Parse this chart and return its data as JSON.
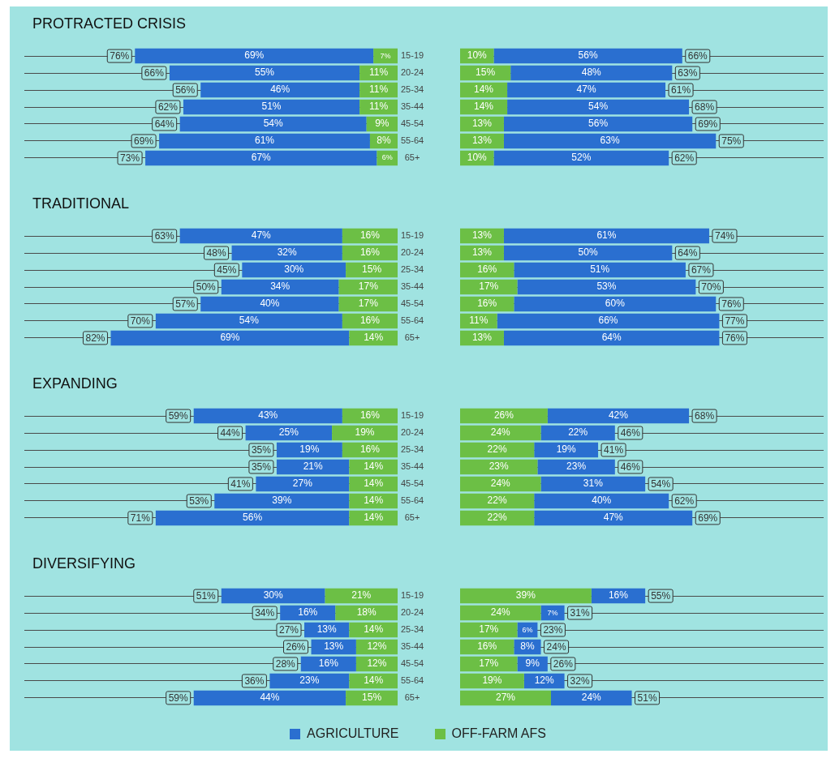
{
  "chart_data": [
    {
      "type": "bar",
      "orientation": "horizontal",
      "stacked": true,
      "title": "PROTRACTED CRISIS",
      "categories": [
        "15-19",
        "20-24",
        "25-34",
        "35-44",
        "45-54",
        "55-64",
        "65+"
      ],
      "xlim": [
        108,
        0
      ],
      "grid": "y",
      "series": [
        {
          "color": "#6cbf45",
          "values": [
            7,
            11,
            11,
            11,
            9,
            8,
            6
          ],
          "value_labels": [
            "7%",
            "11%",
            "11%",
            "11%",
            "9%",
            "8%",
            "6%"
          ]
        },
        {
          "color": "#2a6fd0",
          "values": [
            69,
            55,
            46,
            51,
            54,
            61,
            67
          ],
          "value_labels": [
            "69%",
            "55%",
            "46%",
            "51%",
            "54%",
            "61%",
            "67%"
          ]
        }
      ],
      "totals": [
        "76%",
        "66%",
        "56%",
        "62%",
        "64%",
        "69%",
        "73%"
      ]
    },
    {
      "type": "bar",
      "orientation": "horizontal",
      "stacked": true,
      "xlim": [
        0,
        108
      ],
      "grid": "y",
      "series": [
        {
          "color": "#6cbf45",
          "values": [
            10,
            15,
            14,
            14,
            13,
            13,
            10
          ],
          "value_labels": [
            "10%",
            "15%",
            "14%",
            "14%",
            "13%",
            "13%",
            "10%"
          ]
        },
        {
          "color": "#2a6fd0",
          "values": [
            56,
            48,
            47,
            54,
            56,
            63,
            52
          ],
          "value_labels": [
            "56%",
            "48%",
            "47%",
            "54%",
            "56%",
            "63%",
            "52%"
          ]
        }
      ],
      "totals": [
        "66%",
        "63%",
        "61%",
        "68%",
        "69%",
        "75%",
        "62%"
      ]
    },
    {
      "type": "bar",
      "orientation": "horizontal",
      "stacked": true,
      "title": "TRADITIONAL",
      "categories": [
        "15-19",
        "20-24",
        "25-34",
        "35-44",
        "45-54",
        "55-64",
        "65+"
      ],
      "xlim": [
        108,
        0
      ],
      "grid": "y",
      "series": [
        {
          "color": "#6cbf45",
          "values": [
            16,
            16,
            15,
            17,
            17,
            16,
            14
          ],
          "value_labels": [
            "16%",
            "16%",
            "15%",
            "17%",
            "17%",
            "16%",
            "14%"
          ]
        },
        {
          "color": "#2a6fd0",
          "values": [
            47,
            32,
            30,
            34,
            40,
            54,
            69
          ],
          "value_labels": [
            "47%",
            "32%",
            "30%",
            "34%",
            "40%",
            "54%",
            "69%"
          ]
        }
      ],
      "totals": [
        "63%",
        "48%",
        "45%",
        "50%",
        "57%",
        "70%",
        "82%"
      ]
    },
    {
      "type": "bar",
      "orientation": "horizontal",
      "stacked": true,
      "xlim": [
        0,
        108
      ],
      "grid": "y",
      "series": [
        {
          "color": "#6cbf45",
          "values": [
            13,
            13,
            16,
            17,
            16,
            11,
            13
          ],
          "value_labels": [
            "13%",
            "13%",
            "16%",
            "17%",
            "16%",
            "11%",
            "13%"
          ]
        },
        {
          "color": "#2a6fd0",
          "values": [
            61,
            50,
            51,
            53,
            60,
            66,
            64
          ],
          "value_labels": [
            "61%",
            "50%",
            "51%",
            "53%",
            "60%",
            "66%",
            "64%"
          ]
        }
      ],
      "totals": [
        "74%",
        "64%",
        "67%",
        "70%",
        "76%",
        "77%",
        "76%"
      ]
    },
    {
      "type": "bar",
      "orientation": "horizontal",
      "stacked": true,
      "title": "EXPANDING",
      "categories": [
        "15-19",
        "20-24",
        "25-34",
        "35-44",
        "45-54",
        "55-64",
        "65+"
      ],
      "xlim": [
        108,
        0
      ],
      "grid": "y",
      "series": [
        {
          "color": "#6cbf45",
          "values": [
            16,
            19,
            16,
            14,
            14,
            14,
            14
          ],
          "value_labels": [
            "16%",
            "19%",
            "16%",
            "14%",
            "14%",
            "14%",
            "14%"
          ]
        },
        {
          "color": "#2a6fd0",
          "values": [
            43,
            25,
            19,
            21,
            27,
            39,
            56
          ],
          "value_labels": [
            "43%",
            "25%",
            "19%",
            "21%",
            "27%",
            "39%",
            "56%"
          ]
        }
      ],
      "totals": [
        "59%",
        "44%",
        "35%",
        "35%",
        "41%",
        "53%",
        "71%"
      ]
    },
    {
      "type": "bar",
      "orientation": "horizontal",
      "stacked": true,
      "xlim": [
        0,
        108
      ],
      "grid": "y",
      "series": [
        {
          "color": "#6cbf45",
          "values": [
            26,
            24,
            22,
            23,
            24,
            22,
            22
          ],
          "value_labels": [
            "26%",
            "24%",
            "22%",
            "23%",
            "24%",
            "22%",
            "22%"
          ]
        },
        {
          "color": "#2a6fd0",
          "values": [
            42,
            22,
            19,
            23,
            31,
            40,
            47
          ],
          "value_labels": [
            "42%",
            "22%",
            "19%",
            "23%",
            "31%",
            "40%",
            "47%"
          ]
        }
      ],
      "totals": [
        "68%",
        "46%",
        "41%",
        "46%",
        "54%",
        "62%",
        "69%"
      ]
    },
    {
      "type": "bar",
      "orientation": "horizontal",
      "stacked": true,
      "title": "DIVERSIFYING",
      "categories": [
        "15-19",
        "20-24",
        "25-34",
        "35-44",
        "45-54",
        "55-64",
        "65+"
      ],
      "xlim": [
        108,
        0
      ],
      "grid": "y",
      "series": [
        {
          "color": "#6cbf45",
          "values": [
            21,
            18,
            14,
            12,
            12,
            14,
            15
          ],
          "value_labels": [
            "21%",
            "18%",
            "14%",
            "12%",
            "12%",
            "14%",
            "15%"
          ]
        },
        {
          "color": "#2a6fd0",
          "values": [
            30,
            16,
            13,
            13,
            16,
            23,
            44
          ],
          "value_labels": [
            "30%",
            "16%",
            "13%",
            "13%",
            "16%",
            "23%",
            "44%"
          ]
        }
      ],
      "totals": [
        "51%",
        "34%",
        "27%",
        "26%",
        "28%",
        "36%",
        "59%"
      ]
    },
    {
      "type": "bar",
      "orientation": "horizontal",
      "stacked": true,
      "xlim": [
        0,
        108
      ],
      "grid": "y",
      "legend": "bottom",
      "series": [
        {
          "name": "OFF-FARM AFS",
          "color": "#6cbf45",
          "values": [
            39,
            24,
            17,
            16,
            17,
            19,
            27
          ],
          "value_labels": [
            "39%",
            "24%",
            "17%",
            "16%",
            "17%",
            "19%",
            "27%"
          ]
        },
        {
          "name": "AGRICULTURE",
          "color": "#2a6fd0",
          "values": [
            16,
            7,
            6,
            8,
            9,
            12,
            24
          ],
          "value_labels": [
            "16%",
            "7%",
            "6%",
            "8%",
            "9%",
            "12%",
            "24%"
          ]
        }
      ],
      "totals": [
        "55%",
        "31%",
        "23%",
        "24%",
        "26%",
        "32%",
        "51%"
      ]
    }
  ]
}
